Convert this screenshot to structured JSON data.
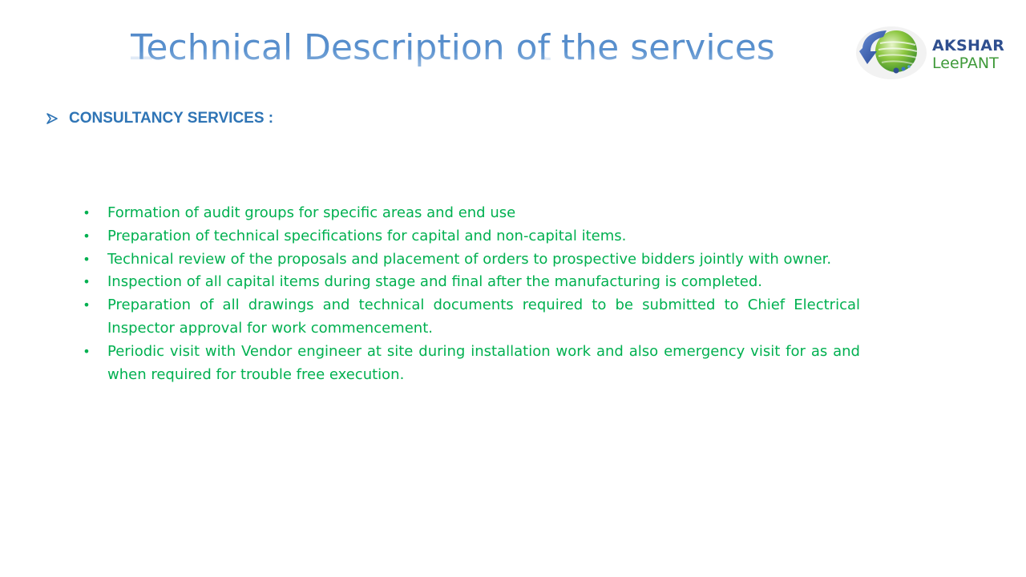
{
  "title": "Technical Description of the services :",
  "logo": {
    "line1": "AKSHAR",
    "line2": "LeePANT"
  },
  "section": {
    "label": "CONSULTANCY SERVICES :"
  },
  "bullets": [
    "Formation of audit groups for specific areas and end use",
    "Preparation of technical specifications for capital and non-capital items.",
    "Technical review of the proposals and placement of orders to prospective bidders jointly with owner.",
    "Inspection of all capital items during stage and final after the manufacturing is completed.",
    "Preparation of all drawings and technical documents required to be submitted to Chief Electrical Inspector approval for work commencement.",
    "Periodic visit with Vendor engineer at site during installation work and also emergency visit for as and when required for trouble free execution."
  ],
  "colors": {
    "title": "#5b92cf",
    "section": "#2e74b5",
    "bullet_text": "#00b050"
  }
}
